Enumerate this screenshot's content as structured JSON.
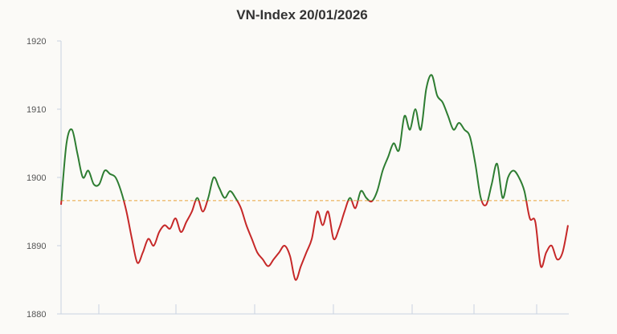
{
  "chart_data": {
    "type": "line",
    "title": "VN-Index 20/01/2026",
    "xlabel": "",
    "ylabel": "",
    "ylim": [
      1880,
      1920
    ],
    "y_ticks": [
      "1880",
      "1890",
      "1900",
      "1910",
      "1920"
    ],
    "reference_value": 1896.6,
    "grid": false,
    "legend": "none",
    "colors": {
      "up": "#2e7d32",
      "down": "#c62828",
      "reference": "#e8a33a",
      "axis": "#c8d3e0"
    },
    "series": [
      {
        "values": [
          1896.0,
          1905.0,
          1907.0,
          1903.5,
          1900.0,
          1901.0,
          1899.0,
          1899.0,
          1901.0,
          1900.5,
          1900.0,
          1898.0,
          1895.0,
          1891.0,
          1887.5,
          1889.0,
          1891.0,
          1890.0,
          1892.0,
          1893.0,
          1892.5,
          1894.0,
          1892.0,
          1893.5,
          1895.0,
          1897.0,
          1895.0,
          1897.0,
          1900.0,
          1898.5,
          1897.0,
          1898.0,
          1897.0,
          1895.5,
          1893.0,
          1891.0,
          1889.0,
          1888.0,
          1887.0,
          1888.0,
          1889.0,
          1890.0,
          1888.5,
          1885.0,
          1887.0,
          1889.0,
          1891.0,
          1895.0,
          1893.0,
          1895.0,
          1891.0,
          1892.5,
          1895.0,
          1897.0,
          1895.5,
          1898.0,
          1897.0,
          1896.5,
          1898.0,
          1901.0,
          1903.0,
          1905.0,
          1904.0,
          1909.0,
          1907.0,
          1910.0,
          1907.0,
          1913.0,
          1915.0,
          1912.0,
          1911.0,
          1909.0,
          1907.0,
          1908.0,
          1907.0,
          1906.0,
          1902.0,
          1897.0,
          1896.0,
          1899.0,
          1902.0,
          1897.0,
          1900.0,
          1901.0,
          1900.0,
          1898.0,
          1894.0,
          1893.5,
          1887.0,
          1889.0,
          1890.0,
          1888.0,
          1889.0,
          1893.0
        ]
      }
    ]
  }
}
